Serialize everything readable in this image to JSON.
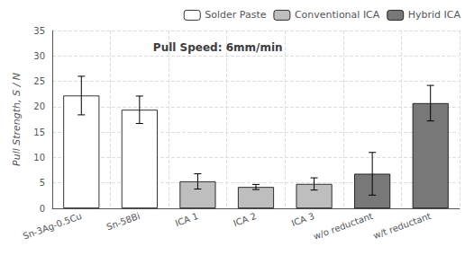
{
  "chart_data": {
    "type": "bar",
    "annotation": "Pull Speed: 6mm/min",
    "ylabel": "Pull Strength, S / N",
    "categories": [
      "Sn-3Ag-0.5Cu",
      "Sn-58Bi",
      "ICA 1",
      "ICA 2",
      "ICA 3",
      "w/o reductant",
      "w/t reductant"
    ],
    "series": [
      {
        "name": "Solder Paste",
        "color": "#ffffff",
        "values": [
          22.2,
          19.4,
          null,
          null,
          null,
          null,
          null
        ],
        "errors": [
          3.8,
          2.7,
          null,
          null,
          null,
          null,
          null
        ]
      },
      {
        "name": "Conventional ICA",
        "color": "#bebebe",
        "values": [
          null,
          null,
          5.3,
          4.2,
          4.8,
          null,
          null
        ],
        "errors": [
          null,
          null,
          1.5,
          0.5,
          1.2,
          null,
          null
        ]
      },
      {
        "name": "Hybrid ICA",
        "color": "#787878",
        "values": [
          null,
          null,
          null,
          null,
          null,
          6.8,
          20.7
        ],
        "errors": [
          null,
          null,
          null,
          null,
          null,
          4.2,
          3.5
        ]
      }
    ],
    "ylim": [
      0,
      35
    ],
    "yticks": [
      0,
      5,
      10,
      15,
      20,
      25,
      30,
      35
    ],
    "grid": true,
    "legend": "upper right"
  }
}
